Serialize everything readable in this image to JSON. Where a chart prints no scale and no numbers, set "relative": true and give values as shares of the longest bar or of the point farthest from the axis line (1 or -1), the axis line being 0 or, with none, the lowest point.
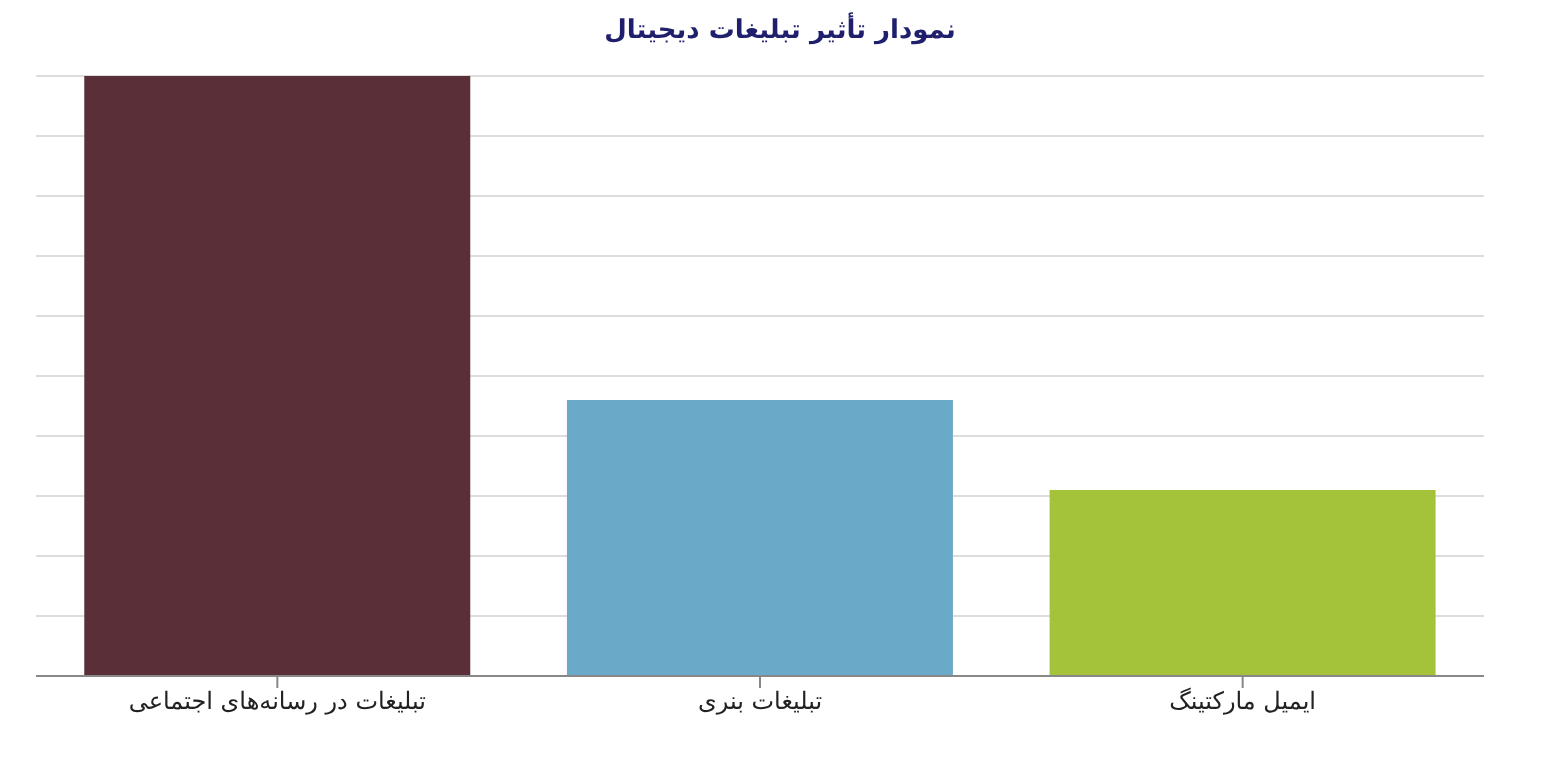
{
  "chart_data": {
    "type": "bar",
    "title": "نمودار تأثیر تبلیغات دیجیتال",
    "relative": true,
    "categories": [
      "تبلیغات در رسانه‌های  اجتماعی",
      "تبلیغات بنری",
      "ایمیل مارکتینگ"
    ],
    "values": [
      1,
      0.46,
      0.31
    ],
    "colors": [
      "#5a2f38",
      "#6aaac8",
      "#a4c23a"
    ],
    "grid": "y"
  }
}
